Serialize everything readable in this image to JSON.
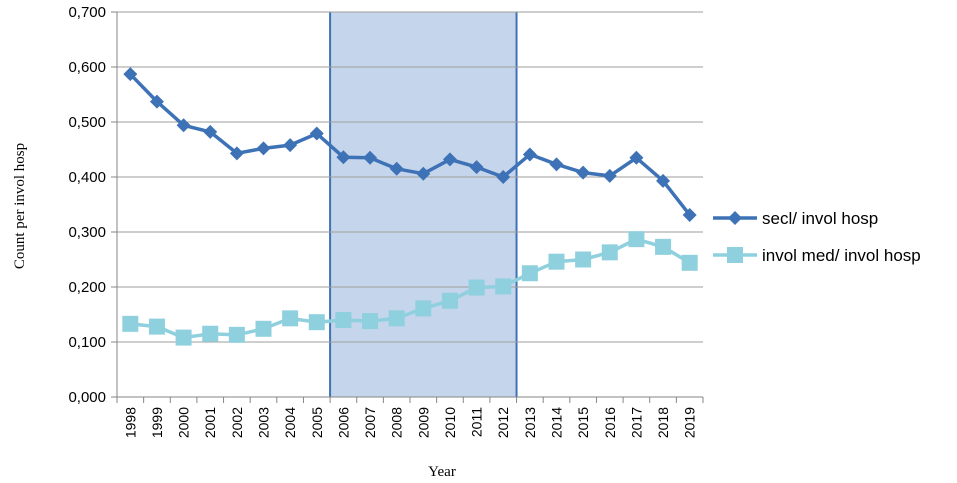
{
  "chart_data": {
    "type": "line",
    "xlabel": "Year",
    "ylabel": "Count per invol hosp",
    "ylim": [
      0,
      0.7
    ],
    "yticks": [
      "0,000",
      "0,100",
      "0,200",
      "0,300",
      "0,400",
      "0,500",
      "0,600",
      "0,700"
    ],
    "yticks_values": [
      0,
      0.1,
      0.2,
      0.3,
      0.4,
      0.5,
      0.6,
      0.7
    ],
    "categories": [
      "1998",
      "1999",
      "2000",
      "2001",
      "2002",
      "2003",
      "2004",
      "2005",
      "2006",
      "2007",
      "2008",
      "2009",
      "2010",
      "2011",
      "2012",
      "2013",
      "2014",
      "2015",
      "2016",
      "2017",
      "2018",
      "2019"
    ],
    "grid": "horizontal",
    "legend_position": "right",
    "highlight_range": [
      "2006",
      "2012"
    ],
    "series": [
      {
        "name": "secl/ invol hosp",
        "marker": "diamond",
        "color": "#3E72B6",
        "values": [
          0.587,
          0.537,
          0.494,
          0.482,
          0.443,
          0.452,
          0.458,
          0.479,
          0.436,
          0.435,
          0.415,
          0.406,
          0.432,
          0.418,
          0.4,
          0.441,
          0.423,
          0.408,
          0.402,
          0.435,
          0.393,
          0.331
        ]
      },
      {
        "name": "invol med/ invol hosp",
        "marker": "square",
        "color": "#8FD0DF",
        "values": [
          0.133,
          0.128,
          0.108,
          0.115,
          0.113,
          0.124,
          0.143,
          0.136,
          0.14,
          0.138,
          0.143,
          0.161,
          0.175,
          0.199,
          0.201,
          0.225,
          0.246,
          0.25,
          0.263,
          0.287,
          0.273,
          0.244
        ]
      }
    ]
  },
  "colors": {
    "highlight_fill": "#C5D5EB",
    "highlight_border": "#3E72B6",
    "grid": "#9E9E9E",
    "axis": "#868686"
  }
}
